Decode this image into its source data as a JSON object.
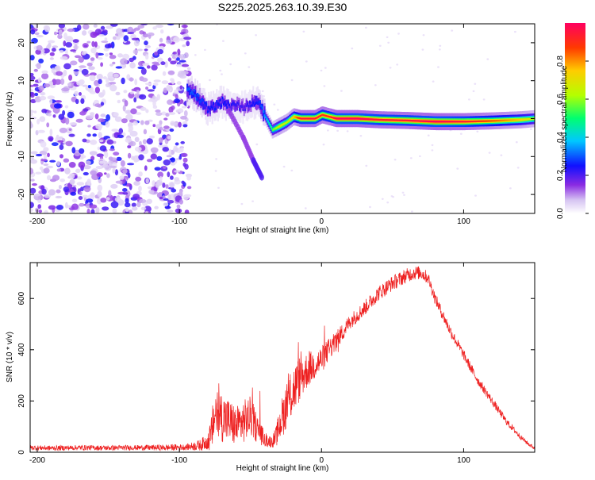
{
  "figure": {
    "title": "S225.2025.263.10.39.E30"
  },
  "chart_data": [
    {
      "id": "spectrogram",
      "type": "heatmap",
      "title": "S225.2025.263.10.39.E30",
      "xlabel": "Height of straight line (km)",
      "ylabel": "Frequency (Hz)",
      "xlim": [
        -205,
        150
      ],
      "ylim": [
        -25,
        25
      ],
      "xticks": [
        "-200",
        "-100",
        "0",
        "100"
      ],
      "yticks": [
        "-20",
        "-10",
        "0",
        "10",
        "20"
      ],
      "colorbar": {
        "label": "Normalized spectral amplitude",
        "ticks": [
          "0.0",
          "0.2",
          "0.4",
          "0.6",
          "0.8"
        ],
        "range": [
          0,
          1
        ]
      },
      "noise_region_km": [
        -205,
        -93
      ],
      "ridge": [
        {
          "x": -95,
          "y": 7.5,
          "a": 0.3
        },
        {
          "x": -90,
          "y": 6.5,
          "a": 0.3
        },
        {
          "x": -85,
          "y": 4.5,
          "a": 0.28
        },
        {
          "x": -80,
          "y": 2.5,
          "a": 0.25
        },
        {
          "x": -75,
          "y": 3.5,
          "a": 0.26
        },
        {
          "x": -70,
          "y": 4.5,
          "a": 0.25
        },
        {
          "x": -65,
          "y": 3.0,
          "a": 0.24
        },
        {
          "x": -60,
          "y": 3.5,
          "a": 0.22
        },
        {
          "x": -55,
          "y": 3.0,
          "a": 0.2
        },
        {
          "x": -50,
          "y": 4.0,
          "a": 0.24
        },
        {
          "x": -45,
          "y": 4.5,
          "a": 0.26
        },
        {
          "x": -40,
          "y": 0.5,
          "a": 0.35
        },
        {
          "x": -35,
          "y": -3.0,
          "a": 0.55
        },
        {
          "x": -30,
          "y": -2.0,
          "a": 0.7
        },
        {
          "x": -25,
          "y": -1.0,
          "a": 0.65
        },
        {
          "x": -20,
          "y": 0.5,
          "a": 0.75
        },
        {
          "x": -15,
          "y": 0.0,
          "a": 0.95
        },
        {
          "x": -5,
          "y": 0.0,
          "a": 0.95
        },
        {
          "x": 0,
          "y": 1.0,
          "a": 0.9
        },
        {
          "x": 5,
          "y": 0.5,
          "a": 0.9
        },
        {
          "x": 10,
          "y": 0.0,
          "a": 1.0
        },
        {
          "x": 25,
          "y": 0.0,
          "a": 1.0
        },
        {
          "x": 40,
          "y": -0.3,
          "a": 0.95
        },
        {
          "x": 60,
          "y": -0.5,
          "a": 0.95
        },
        {
          "x": 80,
          "y": -0.8,
          "a": 1.0
        },
        {
          "x": 100,
          "y": -0.8,
          "a": 0.95
        },
        {
          "x": 120,
          "y": -0.6,
          "a": 0.85
        },
        {
          "x": 140,
          "y": -0.3,
          "a": 0.75
        },
        {
          "x": 150,
          "y": 0.0,
          "a": 0.65
        }
      ],
      "branch": [
        {
          "x": -65,
          "y": 2.0
        },
        {
          "x": -55,
          "y": -5.0
        },
        {
          "x": -48,
          "y": -11.0
        },
        {
          "x": -42,
          "y": -15.5
        }
      ]
    },
    {
      "id": "snr",
      "type": "line",
      "xlabel": "Height of straight line (km)",
      "ylabel": "SNR (10 * v/v)",
      "xlim": [
        -205,
        150
      ],
      "ylim": [
        0,
        740
      ],
      "xticks": [
        "-200",
        "-100",
        "0",
        "100"
      ],
      "yticks": [
        "0",
        "200",
        "400",
        "600"
      ],
      "series": [
        {
          "name": "SNR",
          "color": "#ee2020",
          "x": [
            -205,
            -190,
            -170,
            -150,
            -130,
            -110,
            -95,
            -85,
            -80,
            -78,
            -75,
            -70,
            -65,
            -60,
            -55,
            -50,
            -45,
            -40,
            -35,
            -32,
            -28,
            -25,
            -20,
            -15,
            -10,
            -5,
            0,
            5,
            10,
            15,
            20,
            30,
            40,
            50,
            60,
            65,
            70,
            75,
            80,
            90,
            100,
            110,
            120,
            130,
            140,
            145,
            150
          ],
          "y": [
            18,
            16,
            18,
            17,
            18,
            18,
            20,
            28,
            45,
            60,
            150,
            140,
            120,
            100,
            120,
            140,
            90,
            50,
            40,
            60,
            130,
            180,
            240,
            290,
            320,
            340,
            360,
            400,
            430,
            470,
            510,
            560,
            620,
            660,
            690,
            700,
            700,
            680,
            600,
            480,
            380,
            280,
            200,
            120,
            60,
            35,
            15
          ],
          "noise": [
            10,
            10,
            10,
            10,
            10,
            12,
            12,
            22,
            35,
            60,
            110,
            100,
            90,
            80,
            85,
            80,
            55,
            30,
            22,
            40,
            80,
            90,
            100,
            90,
            70,
            60,
            55,
            45,
            40,
            35,
            30,
            30,
            30,
            30,
            28,
            28,
            26,
            25,
            24,
            22,
            20,
            18,
            16,
            14,
            10,
            8,
            6
          ]
        }
      ]
    }
  ]
}
